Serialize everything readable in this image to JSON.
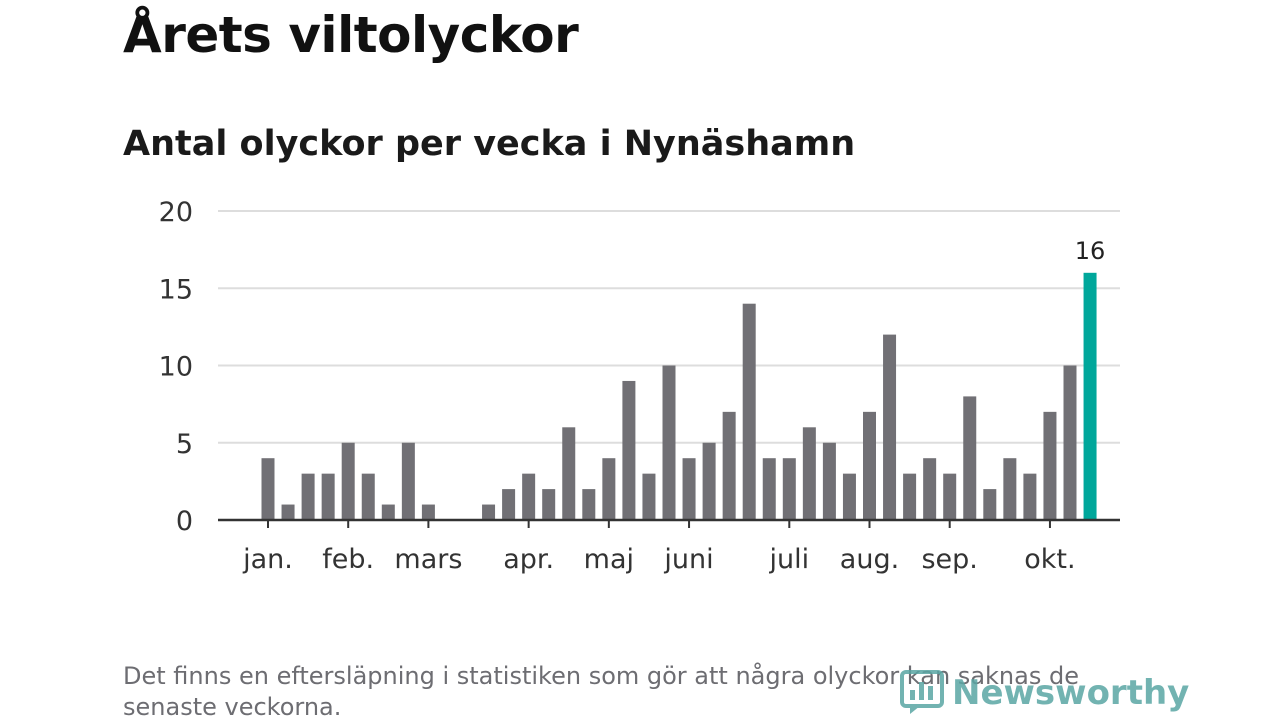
{
  "title": "Årets viltolyckor",
  "subtitle": "Antal olyckor per vecka i Nynäshamn",
  "footnote": "Det finns en eftersläpning i statistiken som gör att några olyckor kan saknas de senaste veckorna.",
  "logo": {
    "text": "Newsworthy",
    "icon": "newsworthy-chart-icon"
  },
  "colors": {
    "bar": "#717075",
    "highlight": "#00a79b",
    "grid": "#dddddd",
    "axis": "#333333"
  },
  "chart_data": {
    "type": "bar",
    "title": "Antal olyckor per vecka i Nynäshamn",
    "xlabel": "",
    "ylabel": "",
    "ylim": [
      0,
      20
    ],
    "yticks": [
      0,
      5,
      10,
      15,
      20
    ],
    "grid": true,
    "x": [
      1,
      2,
      3,
      4,
      5,
      6,
      7,
      8,
      9,
      10,
      11,
      12,
      13,
      14,
      15,
      16,
      17,
      18,
      19,
      20,
      21,
      22,
      23,
      24,
      25,
      26,
      27,
      28,
      29,
      30,
      31,
      32,
      33,
      34,
      35,
      36,
      37,
      38,
      39,
      40,
      41,
      42
    ],
    "values": [
      4,
      1,
      3,
      3,
      5,
      3,
      1,
      5,
      1,
      0,
      0,
      1,
      2,
      3,
      2,
      6,
      2,
      4,
      9,
      3,
      10,
      4,
      5,
      7,
      14,
      4,
      4,
      6,
      5,
      3,
      7,
      12,
      3,
      4,
      3,
      8,
      2,
      4,
      3,
      7,
      10,
      16
    ],
    "highlight_index": 41,
    "data_label": "16",
    "month_labels": [
      {
        "label": "jan.",
        "week": 1
      },
      {
        "label": "feb.",
        "week": 5
      },
      {
        "label": "mars",
        "week": 9
      },
      {
        "label": "apr.",
        "week": 14
      },
      {
        "label": "maj",
        "week": 18
      },
      {
        "label": "juni",
        "week": 22
      },
      {
        "label": "juli",
        "week": 27
      },
      {
        "label": "aug.",
        "week": 31
      },
      {
        "label": "sep.",
        "week": 35
      },
      {
        "label": "okt.",
        "week": 40
      }
    ]
  }
}
